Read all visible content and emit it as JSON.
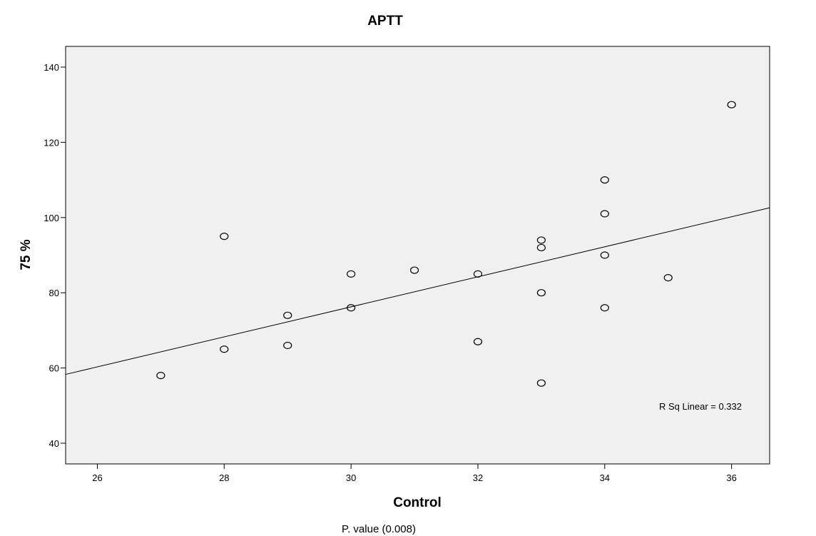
{
  "chart_data": {
    "type": "scatter",
    "title": "APTT",
    "xlabel": "Control",
    "ylabel": "75 %",
    "xlim": [
      25.5,
      36.6
    ],
    "ylim": [
      34.5,
      145.5
    ],
    "x_ticks": [
      26,
      28,
      30,
      32,
      34,
      36
    ],
    "y_ticks": [
      40,
      60,
      80,
      100,
      120,
      140
    ],
    "points": [
      {
        "x": 27,
        "y": 58
      },
      {
        "x": 28,
        "y": 95
      },
      {
        "x": 28,
        "y": 65
      },
      {
        "x": 29,
        "y": 74
      },
      {
        "x": 29,
        "y": 66
      },
      {
        "x": 30,
        "y": 85
      },
      {
        "x": 30,
        "y": 76
      },
      {
        "x": 31,
        "y": 86
      },
      {
        "x": 32,
        "y": 85
      },
      {
        "x": 32,
        "y": 67
      },
      {
        "x": 33,
        "y": 94
      },
      {
        "x": 33,
        "y": 92
      },
      {
        "x": 33,
        "y": 80
      },
      {
        "x": 33,
        "y": 56
      },
      {
        "x": 34,
        "y": 110
      },
      {
        "x": 34,
        "y": 101
      },
      {
        "x": 34,
        "y": 90
      },
      {
        "x": 34,
        "y": 76
      },
      {
        "x": 35,
        "y": 84
      },
      {
        "x": 36,
        "y": 130
      }
    ],
    "fit_line": {
      "type": "linear",
      "points": [
        [
          25.5,
          58.3
        ],
        [
          36.6,
          102.6
        ]
      ]
    },
    "annotation": "R Sq Linear = 0.332",
    "grid": false,
    "plot_background": "#f0f0f0",
    "marker_color": "#000000"
  },
  "footnote": "P. value (0.008)"
}
